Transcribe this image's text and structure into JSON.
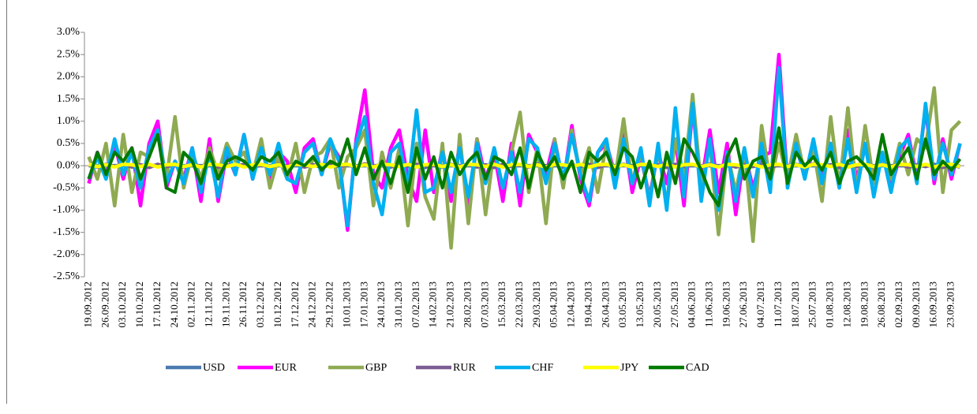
{
  "chart_data": {
    "type": "line",
    "categories": [
      "19.09.2012",
      null,
      "26.09.2012",
      null,
      "03.10.2012",
      null,
      "10.10.2012",
      null,
      "17.10.2012",
      null,
      "24.10.2012",
      null,
      "02.11.2012",
      null,
      "12.11.2012",
      null,
      "19.11.2012",
      null,
      "26.11.2012",
      null,
      "03.12.2012",
      null,
      "10.12.2012",
      null,
      "17.12.2012",
      null,
      "24.12.2012",
      null,
      "29.12.2012",
      null,
      "10.01.2013",
      null,
      "17.01.2013",
      null,
      "24.01.2013",
      null,
      "31.01.2013",
      null,
      "07.02.2013",
      null,
      "14.02.2013",
      null,
      "21.02.2013",
      null,
      "28.02.2013",
      null,
      "07.03.2013",
      null,
      "15.03.2013",
      null,
      "22.03.2013",
      null,
      "29.03.2013",
      null,
      "05.04.2013",
      null,
      "12.04.2013",
      null,
      "19.04.2013",
      null,
      "26.04.2013",
      null,
      "03.05.2013",
      null,
      "13.05.2013",
      null,
      "20.05.2013",
      null,
      "27.05.2013",
      null,
      "04.06.2013",
      null,
      "11.06.2013",
      null,
      "19.06.2013",
      null,
      "27.06.2013",
      null,
      "04.07.2013",
      null,
      "11.07.2013",
      null,
      "18.07.2013",
      null,
      "25.07.2013",
      null,
      "01.08.2013",
      null,
      "12.08.2013",
      null,
      "19.08.2013",
      null,
      "26.08.2013",
      null,
      "02.09.2013",
      null,
      "09.09.2013",
      null,
      "16.09.2013",
      null,
      "23.09.2013",
      null
    ],
    "series": [
      {
        "name": "USD",
        "color": "#4a7ab0",
        "values": [
          0,
          0,
          0,
          0,
          0,
          0,
          0,
          0,
          0,
          0,
          0,
          0,
          0,
          0,
          0,
          0,
          0,
          0,
          0,
          0,
          0,
          0,
          0,
          0,
          0,
          0,
          0,
          0,
          0,
          0,
          0,
          0,
          0,
          0,
          0,
          0,
          0,
          0,
          0,
          0,
          0,
          0,
          0,
          0,
          0,
          0,
          0,
          0,
          0,
          0,
          0,
          0,
          0,
          0,
          0,
          0,
          0,
          0,
          0,
          0,
          0,
          0,
          0,
          0,
          0,
          0,
          0,
          0,
          0,
          0,
          0,
          0,
          0,
          0,
          0,
          0,
          0,
          0,
          0,
          0,
          0,
          0,
          0,
          0,
          0,
          0,
          0,
          0,
          0,
          0,
          0,
          0,
          0,
          0,
          0,
          0,
          0,
          0,
          0,
          0,
          0,
          0
        ]
      },
      {
        "name": "EUR",
        "color": "#ff00ff",
        "values": [
          -0.4,
          0.3,
          -0.2,
          0.5,
          -0.3,
          0.4,
          -0.9,
          0.5,
          1.0,
          -0.5,
          0.1,
          -0.3,
          0.4,
          -0.8,
          0.6,
          -0.8,
          0.3,
          -0.2,
          0.7,
          -0.3,
          0.5,
          -0.4,
          0.3,
          0.1,
          -0.6,
          0.4,
          0.6,
          -0.2,
          0.5,
          0.2,
          -1.45,
          0.6,
          1.7,
          -0.2,
          -0.5,
          0.4,
          0.8,
          -0.3,
          -0.8,
          0.8,
          -0.6,
          0.4,
          -0.8,
          0.5,
          -1.0,
          0.6,
          -0.3,
          0.3,
          -0.8,
          0.5,
          -0.9,
          0.7,
          0.3,
          -0.2,
          0.6,
          -0.4,
          0.9,
          -0.3,
          -0.9,
          0.3,
          0.5,
          -0.2,
          0.7,
          -0.6,
          0.2,
          -0.7,
          0.3,
          -0.4,
          0.6,
          -0.9,
          1.3,
          -0.4,
          0.8,
          -0.6,
          0.5,
          -1.1,
          0.3,
          -0.5,
          0.2,
          0.3,
          2.5,
          -0.4,
          0.4,
          -0.2,
          0.3,
          -0.3,
          0.5,
          -0.4,
          0.8,
          -0.3,
          0.4,
          -0.2,
          0.3,
          -0.5,
          0.2,
          0.7,
          -0.3,
          1.3,
          -0.4,
          0.6,
          -0.3,
          0.5
        ]
      },
      {
        "name": "GBP",
        "color": "#8faa52",
        "values": [
          0.2,
          -0.3,
          0.5,
          -0.9,
          0.7,
          -0.6,
          0.3,
          0.2,
          0.8,
          -0.3,
          1.1,
          -0.5,
          0.3,
          -0.3,
          0.4,
          -0.2,
          0.5,
          0.1,
          0.3,
          -0.2,
          0.6,
          -0.5,
          0.2,
          -0.3,
          0.5,
          -0.6,
          0.2,
          0.3,
          0.6,
          -0.5,
          0.2,
          0.4,
          0.8,
          -0.9,
          0.3,
          -0.5,
          0.4,
          -1.35,
          0.5,
          -0.7,
          -1.2,
          0.5,
          -1.85,
          0.7,
          -1.3,
          0.6,
          -1.1,
          0.4,
          -0.5,
          0.3,
          1.2,
          -0.6,
          0.4,
          -1.3,
          0.6,
          -0.5,
          0.8,
          -0.2,
          0.4,
          -0.6,
          0.5,
          -0.3,
          1.05,
          -0.4,
          0.3,
          -0.8,
          0.4,
          -0.9,
          0.6,
          -0.3,
          1.6,
          -0.5,
          0.5,
          -1.55,
          0.3,
          -0.6,
          0.4,
          -1.7,
          0.9,
          -0.4,
          0.5,
          -0.3,
          0.7,
          -0.2,
          0.4,
          -0.8,
          1.1,
          -0.5,
          1.3,
          -0.6,
          0.9,
          -0.4,
          0.3,
          -0.3,
          0.5,
          -0.2,
          0.6,
          0.4,
          1.75,
          -0.6,
          0.8,
          1.0
        ]
      },
      {
        "name": "RUR",
        "color": "#7b5c93",
        "values": [
          0.02,
          -0.03,
          0.03,
          -0.02,
          0.04,
          -0.03,
          0.02,
          -0.04,
          0.03,
          -0.02,
          0.02,
          -0.03,
          0.04,
          -0.02,
          0.03,
          -0.03,
          0.02,
          -0.02,
          0.03,
          -0.04,
          0.02,
          -0.03,
          0.03,
          -0.02,
          0.04,
          -0.03,
          0.02,
          -0.04,
          0.03,
          -0.02,
          0.02,
          -0.03,
          0.04,
          -0.02,
          0.03,
          -0.03,
          0.02,
          -0.02,
          0.03,
          -0.04,
          0.02,
          -0.03,
          0.03,
          -0.02,
          0.04,
          -0.03,
          0.02,
          -0.04,
          0.03,
          -0.02,
          0.02,
          -0.03,
          0.04,
          -0.02,
          0.03,
          -0.03,
          0.02,
          -0.02,
          0.03,
          -0.04,
          0.02,
          -0.03,
          0.03,
          -0.02,
          0.04,
          -0.03,
          0.02,
          -0.04,
          0.03,
          -0.02,
          0.02,
          -0.03,
          0.04,
          -0.02,
          0.03,
          -0.03,
          0.02,
          -0.02,
          0.03,
          -0.04,
          0.02,
          -0.03,
          0.03,
          -0.02,
          0.04,
          -0.03,
          0.02,
          -0.04,
          0.03,
          -0.02,
          0.02,
          -0.03,
          0.04,
          -0.02,
          0.03,
          -0.03,
          0.02,
          -0.02,
          0.03,
          -0.04,
          0.02,
          -0.03
        ]
      },
      {
        "name": "CHF",
        "color": "#00b0f0",
        "values": [
          -0.3,
          0.2,
          -0.3,
          0.6,
          -0.2,
          0.3,
          -0.5,
          0.4,
          0.8,
          -0.4,
          0.1,
          -0.4,
          0.4,
          -0.6,
          0.3,
          -0.7,
          0.4,
          -0.2,
          0.7,
          -0.3,
          0.4,
          -0.2,
          0.5,
          -0.3,
          -0.4,
          0.3,
          0.5,
          -0.2,
          0.6,
          0.1,
          -1.35,
          0.5,
          1.1,
          -0.4,
          -1.1,
          0.3,
          0.5,
          -0.5,
          1.25,
          -0.6,
          -0.5,
          0.3,
          -0.6,
          0.4,
          -0.7,
          0.5,
          -0.4,
          0.4,
          -0.5,
          0.3,
          -0.6,
          0.6,
          0.4,
          -0.4,
          0.5,
          -0.3,
          0.7,
          -0.2,
          -0.8,
          0.3,
          0.6,
          -0.5,
          0.6,
          -0.4,
          0.4,
          -0.9,
          0.5,
          -1.0,
          1.3,
          -0.7,
          1.4,
          -0.8,
          0.6,
          -1.0,
          0.3,
          -0.8,
          0.4,
          -0.7,
          0.5,
          -0.6,
          2.2,
          -0.5,
          0.5,
          -0.3,
          0.6,
          -0.4,
          0.5,
          -0.5,
          0.6,
          -0.6,
          0.5,
          -0.7,
          0.3,
          -0.6,
          0.4,
          0.6,
          -0.4,
          1.4,
          -0.3,
          0.5,
          -0.2,
          0.5
        ]
      },
      {
        "name": "JPY",
        "color": "#ffff00",
        "values": [
          0.03,
          -0.02,
          0.02,
          -0.03,
          0.03,
          0.02,
          -0.02,
          0.03,
          -0.03,
          0.02,
          0.03,
          -0.02,
          0.02,
          -0.03,
          0.03,
          0.02,
          -0.02,
          0.03,
          -0.03,
          0.02,
          0.03,
          -0.02,
          0.02,
          -0.03,
          0.03,
          0.02,
          -0.02,
          0.03,
          -0.03,
          0.02,
          0.03,
          -0.02,
          0.02,
          -0.03,
          0.03,
          0.02,
          -0.02,
          0.03,
          -0.03,
          0.02,
          0.03,
          -0.02,
          0.02,
          -0.03,
          0.03,
          0.02,
          -0.02,
          0.03,
          -0.03,
          0.02,
          0.03,
          -0.02,
          0.02,
          -0.03,
          0.03,
          0.02,
          -0.02,
          0.03,
          -0.03,
          0.02,
          0.03,
          -0.02,
          0.02,
          -0.03,
          0.03,
          0.02,
          -0.02,
          0.03,
          -0.03,
          0.02,
          0.03,
          -0.02,
          0.02,
          -0.03,
          0.03,
          0.02,
          -0.02,
          0.03,
          -0.03,
          0.02,
          0.03,
          -0.02,
          0.02,
          -0.03,
          0.03,
          0.02,
          -0.02,
          0.03,
          -0.03,
          0.02,
          0.03,
          -0.02,
          0.02,
          -0.03,
          0.03,
          0.02,
          -0.02,
          0.03,
          -0.03,
          0.02,
          0.03,
          -0.02
        ]
      },
      {
        "name": "CAD",
        "color": "#007a00",
        "values": [
          -0.3,
          0.3,
          -0.2,
          0.3,
          0.1,
          0.4,
          -0.3,
          0.2,
          0.7,
          -0.5,
          -0.6,
          0.3,
          0.1,
          -0.4,
          0.3,
          -0.3,
          0.1,
          0.2,
          0.1,
          -0.1,
          0.2,
          0.1,
          0.3,
          -0.2,
          0.1,
          0.0,
          0.2,
          -0.1,
          0.1,
          0.0,
          0.6,
          -0.2,
          0.4,
          -0.3,
          0.1,
          -0.4,
          0.2,
          -0.6,
          0.4,
          -0.3,
          0.2,
          -0.5,
          0.3,
          -0.2,
          0.1,
          0.3,
          -0.3,
          0.2,
          0.1,
          -0.2,
          0.4,
          -0.5,
          0.3,
          -0.1,
          0.2,
          -0.3,
          0.1,
          -0.6,
          0.3,
          0.1,
          0.3,
          -0.2,
          0.4,
          0.2,
          -0.5,
          0.1,
          -0.7,
          0.3,
          -0.4,
          0.6,
          0.3,
          -0.1,
          -0.6,
          -0.9,
          0.2,
          0.6,
          -0.3,
          0.1,
          0.2,
          -0.3,
          0.85,
          -0.4,
          0.3,
          0.0,
          0.2,
          -0.1,
          0.3,
          -0.4,
          0.1,
          0.2,
          0.0,
          -0.3,
          0.7,
          -0.2,
          0.1,
          0.4,
          -0.3,
          0.6,
          -0.2,
          0.1,
          -0.1,
          0.15
        ]
      }
    ],
    "ylim": [
      -2.5,
      3.0
    ],
    "yticks": [
      {
        "value": -2.5,
        "label": "-2.5%"
      },
      {
        "value": -2.0,
        "label": "-2.0%"
      },
      {
        "value": -1.5,
        "label": "-1.5%"
      },
      {
        "value": -1.0,
        "label": "-1.0%"
      },
      {
        "value": -0.5,
        "label": "-0.5%"
      },
      {
        "value": 0,
        "label": "0.0%"
      },
      {
        "value": 0.5,
        "label": "0.5%"
      },
      {
        "value": 1.0,
        "label": "1.0%"
      },
      {
        "value": 1.5,
        "label": "1.5%"
      },
      {
        "value": 2.0,
        "label": "2.0%"
      },
      {
        "value": 2.5,
        "label": "2.5%"
      },
      {
        "value": 3.0,
        "label": "3.0%"
      }
    ],
    "grid": false,
    "legend": "bottom"
  }
}
